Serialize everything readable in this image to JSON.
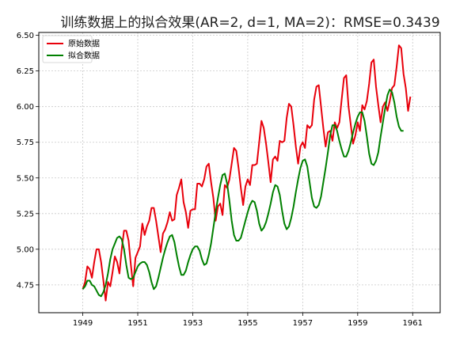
{
  "chart_data": {
    "type": "line",
    "title": "训练数据上的拟合效果(AR=2, d=1, MA=2)：RMSE=0.3439",
    "xlabel": "",
    "ylabel": "",
    "x_start": 1949.0,
    "x_step_months": 1,
    "xlim": [
      1947.4,
      1962.0
    ],
    "ylim": [
      4.555,
      6.52
    ],
    "x_ticks": [
      1949,
      1951,
      1953,
      1955,
      1957,
      1959,
      1961
    ],
    "y_ticks": [
      4.75,
      5.0,
      5.25,
      5.5,
      5.75,
      6.0,
      6.25,
      6.5
    ],
    "grid": true,
    "legend_position": "top-left",
    "series": [
      {
        "name": "原始数据",
        "color": "#e8000b",
        "values": [
          4.72,
          4.77,
          4.88,
          4.86,
          4.8,
          4.91,
          5.0,
          5.0,
          4.91,
          4.78,
          4.64,
          4.77,
          4.74,
          4.84,
          4.95,
          4.91,
          4.83,
          5.0,
          5.13,
          5.13,
          5.06,
          4.89,
          4.74,
          4.94,
          4.98,
          5.02,
          5.18,
          5.1,
          5.16,
          5.2,
          5.29,
          5.29,
          5.2,
          5.09,
          4.98,
          5.11,
          5.14,
          5.19,
          5.26,
          5.2,
          5.21,
          5.38,
          5.43,
          5.49,
          5.33,
          5.26,
          5.15,
          5.27,
          5.28,
          5.28,
          5.46,
          5.46,
          5.44,
          5.49,
          5.58,
          5.6,
          5.47,
          5.36,
          5.2,
          5.3,
          5.32,
          5.24,
          5.45,
          5.43,
          5.49,
          5.6,
          5.71,
          5.69,
          5.57,
          5.43,
          5.31,
          5.44,
          5.49,
          5.45,
          5.59,
          5.59,
          5.6,
          5.75,
          5.9,
          5.85,
          5.74,
          5.61,
          5.47,
          5.63,
          5.65,
          5.62,
          5.76,
          5.75,
          5.76,
          5.92,
          6.02,
          6.0,
          5.87,
          5.72,
          5.6,
          5.72,
          5.75,
          5.71,
          5.87,
          5.85,
          5.87,
          6.05,
          6.14,
          6.15,
          6.0,
          5.85,
          5.72,
          5.82,
          5.83,
          5.76,
          5.89,
          5.85,
          5.89,
          6.05,
          6.2,
          6.22,
          6.0,
          5.87,
          5.74,
          5.8,
          5.89,
          5.83,
          6.01,
          5.98,
          6.04,
          6.16,
          6.31,
          6.33,
          6.14,
          6.01,
          5.89,
          6.0,
          6.03,
          5.97,
          6.04,
          6.13,
          6.15,
          6.28,
          6.43,
          6.41,
          6.23,
          6.13,
          5.97,
          6.07
        ]
      },
      {
        "name": "拟合数据",
        "color": "#008000",
        "values": [
          4.72,
          4.74,
          4.78,
          4.78,
          4.75,
          4.74,
          4.71,
          4.68,
          4.67,
          4.7,
          4.75,
          4.83,
          4.93,
          5.0,
          5.04,
          5.08,
          5.09,
          5.07,
          5.0,
          4.89,
          4.8,
          4.79,
          4.8,
          4.84,
          4.88,
          4.9,
          4.91,
          4.91,
          4.89,
          4.84,
          4.77,
          4.72,
          4.74,
          4.8,
          4.87,
          4.94,
          5.0,
          5.05,
          5.09,
          5.1,
          5.05,
          4.96,
          4.88,
          4.82,
          4.82,
          4.85,
          4.91,
          4.96,
          5.0,
          5.02,
          5.02,
          4.99,
          4.93,
          4.89,
          4.9,
          4.96,
          5.04,
          5.15,
          5.26,
          5.36,
          5.45,
          5.52,
          5.53,
          5.46,
          5.34,
          5.2,
          5.1,
          5.06,
          5.06,
          5.08,
          5.14,
          5.2,
          5.26,
          5.31,
          5.34,
          5.33,
          5.27,
          5.18,
          5.13,
          5.15,
          5.19,
          5.25,
          5.32,
          5.4,
          5.45,
          5.44,
          5.38,
          5.27,
          5.18,
          5.14,
          5.16,
          5.22,
          5.3,
          5.4,
          5.49,
          5.57,
          5.62,
          5.63,
          5.58,
          5.47,
          5.36,
          5.3,
          5.29,
          5.31,
          5.37,
          5.47,
          5.57,
          5.68,
          5.8,
          5.87,
          5.87,
          5.83,
          5.76,
          5.7,
          5.65,
          5.65,
          5.69,
          5.75,
          5.82,
          5.88,
          5.93,
          5.96,
          5.96,
          5.9,
          5.79,
          5.67,
          5.6,
          5.59,
          5.62,
          5.68,
          5.79,
          5.89,
          5.99,
          6.08,
          6.12,
          6.1,
          6.03,
          5.93,
          5.86,
          5.83,
          5.83
        ]
      }
    ]
  }
}
